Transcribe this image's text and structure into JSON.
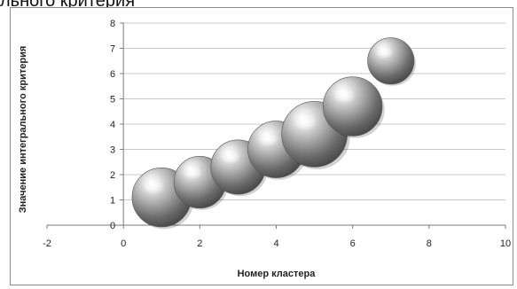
{
  "header_fragment": "льного критерия",
  "chart_data": {
    "type": "bubble",
    "xlabel": "Номер кластера",
    "ylabel": "Значение интегрального критерия",
    "xlim": [
      -2,
      10
    ],
    "ylim": [
      0,
      8
    ],
    "xticks": [
      "-2",
      "0",
      "2",
      "4",
      "6",
      "8",
      "10"
    ],
    "yticks": [
      "0",
      "1",
      "2",
      "3",
      "4",
      "5",
      "6",
      "7",
      "8"
    ],
    "grid": "horizontal",
    "series": [
      {
        "points": [
          {
            "x": 1,
            "y": 1.1,
            "size": 2.6
          },
          {
            "x": 2,
            "y": 1.7,
            "size": 2.0
          },
          {
            "x": 3,
            "y": 2.3,
            "size": 2.2
          },
          {
            "x": 4,
            "y": 3.0,
            "size": 2.4
          },
          {
            "x": 5,
            "y": 3.6,
            "size": 3.2
          },
          {
            "x": 6,
            "y": 4.7,
            "size": 2.6
          },
          {
            "x": 7,
            "y": 6.5,
            "size": 1.6
          }
        ]
      }
    ]
  }
}
